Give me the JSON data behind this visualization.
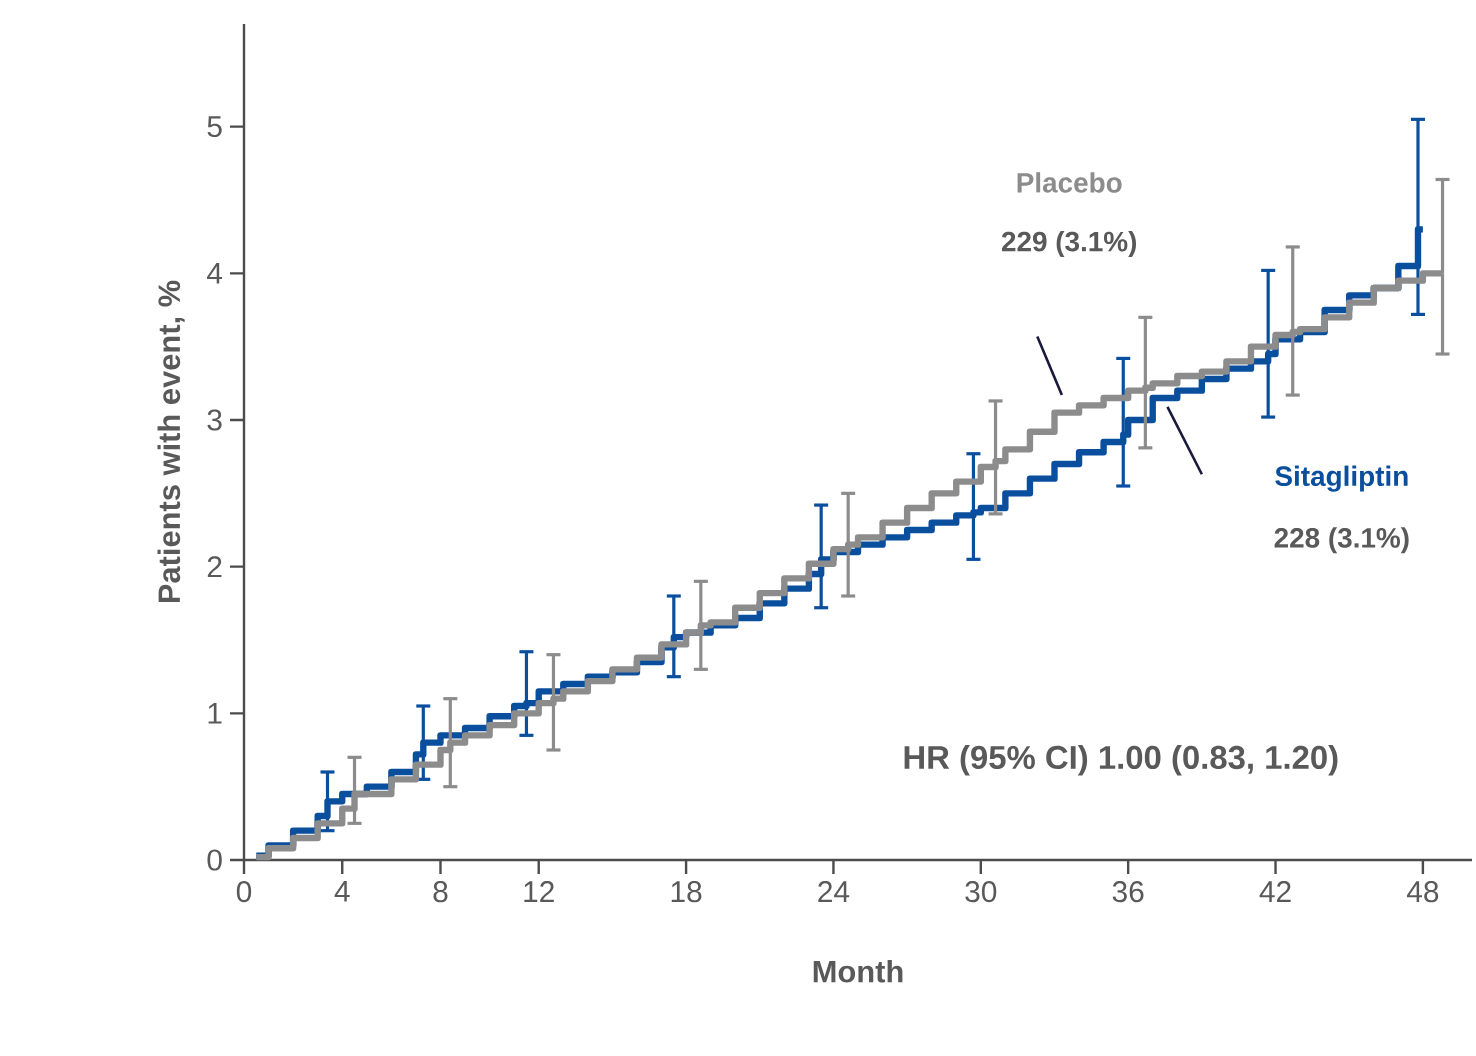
{
  "chart_data": {
    "type": "step",
    "xlabel": "Month",
    "ylabel": "Patients with event, %",
    "xlim": [
      0,
      50
    ],
    "ylim": [
      0,
      5.7
    ],
    "xticks": [
      0,
      4,
      8,
      12,
      18,
      24,
      30,
      36,
      42,
      48
    ],
    "yticks": [
      0,
      1,
      2,
      3,
      4,
      5
    ],
    "series": [
      {
        "name": "Sitagliptin",
        "color": "#0a4f9e",
        "x": [
          0.5,
          1,
          2,
          3,
          3.4,
          4,
          5,
          6,
          7,
          7.3,
          8,
          9,
          10,
          11,
          11.5,
          12,
          13,
          14,
          15,
          16,
          17,
          17.5,
          18,
          19,
          20,
          21,
          22,
          23,
          23.5,
          24,
          25,
          26,
          27,
          28,
          29,
          29.7,
          30,
          31,
          32,
          33,
          34,
          35,
          35.8,
          36,
          37,
          38,
          39,
          40,
          41,
          41.7,
          42,
          43,
          44,
          45,
          46,
          47,
          47.8,
          48
        ],
        "values": [
          0.03,
          0.1,
          0.2,
          0.3,
          0.4,
          0.45,
          0.5,
          0.6,
          0.72,
          0.8,
          0.85,
          0.9,
          0.98,
          1.05,
          1.07,
          1.15,
          1.2,
          1.25,
          1.28,
          1.35,
          1.45,
          1.52,
          1.55,
          1.6,
          1.65,
          1.75,
          1.85,
          1.95,
          2.05,
          2.1,
          2.15,
          2.2,
          2.25,
          2.3,
          2.35,
          2.37,
          2.4,
          2.5,
          2.6,
          2.7,
          2.78,
          2.85,
          2.9,
          3.0,
          3.15,
          3.2,
          3.28,
          3.35,
          3.4,
          3.45,
          3.55,
          3.6,
          3.75,
          3.85,
          3.9,
          4.05,
          4.3,
          4.3
        ],
        "errors": [
          null,
          null,
          null,
          null,
          [
            0.2,
            0.6
          ],
          null,
          null,
          null,
          null,
          [
            0.55,
            1.05
          ],
          null,
          null,
          null,
          null,
          [
            0.85,
            1.42
          ],
          null,
          null,
          null,
          null,
          null,
          null,
          [
            1.25,
            1.8
          ],
          null,
          null,
          null,
          null,
          null,
          null,
          [
            1.72,
            2.42
          ],
          null,
          null,
          null,
          null,
          null,
          null,
          [
            2.05,
            2.77
          ],
          null,
          null,
          null,
          null,
          null,
          null,
          [
            2.55,
            3.42
          ],
          null,
          null,
          null,
          null,
          null,
          null,
          [
            3.02,
            4.02
          ],
          null,
          null,
          null,
          null,
          null,
          null,
          [
            3.72,
            5.05
          ],
          null
        ]
      },
      {
        "name": "Placebo",
        "color": "#8c8c8c",
        "x": [
          0.5,
          1,
          2,
          3,
          4,
          4.5,
          5,
          6,
          7,
          8,
          8.4,
          9,
          10,
          11,
          12,
          12.6,
          13,
          14,
          15,
          16,
          17,
          18,
          18.6,
          19,
          20,
          21,
          22,
          23,
          24,
          24.6,
          25,
          26,
          27,
          28,
          29,
          30,
          30.6,
          31,
          32,
          33,
          34,
          35,
          36,
          36.7,
          37,
          38,
          39,
          40,
          41,
          42,
          42.7,
          43,
          44,
          45,
          46,
          47,
          48,
          48.8
        ],
        "values": [
          0.02,
          0.08,
          0.15,
          0.25,
          0.35,
          0.45,
          0.45,
          0.55,
          0.65,
          0.75,
          0.8,
          0.85,
          0.92,
          1.0,
          1.07,
          1.1,
          1.15,
          1.22,
          1.3,
          1.38,
          1.47,
          1.55,
          1.6,
          1.62,
          1.72,
          1.82,
          1.92,
          2.02,
          2.12,
          2.15,
          2.2,
          2.3,
          2.4,
          2.5,
          2.58,
          2.68,
          2.72,
          2.8,
          2.92,
          3.05,
          3.1,
          3.15,
          3.2,
          3.22,
          3.25,
          3.3,
          3.33,
          3.4,
          3.5,
          3.58,
          3.6,
          3.62,
          3.7,
          3.8,
          3.9,
          3.95,
          4.0,
          4.0
        ],
        "errors": [
          null,
          null,
          null,
          null,
          null,
          [
            0.25,
            0.7
          ],
          null,
          null,
          null,
          null,
          [
            0.5,
            1.1
          ],
          null,
          null,
          null,
          null,
          [
            0.75,
            1.4
          ],
          null,
          null,
          null,
          null,
          null,
          null,
          [
            1.3,
            1.9
          ],
          null,
          null,
          null,
          null,
          null,
          null,
          [
            1.8,
            2.5
          ],
          null,
          null,
          null,
          null,
          null,
          null,
          [
            2.36,
            3.13
          ],
          null,
          null,
          null,
          null,
          null,
          null,
          [
            2.81,
            3.7
          ],
          null,
          null,
          null,
          null,
          null,
          null,
          [
            3.17,
            4.18
          ],
          null,
          null,
          null,
          null,
          null,
          null,
          [
            3.45,
            4.64
          ]
        ]
      }
    ],
    "annotations": [
      "228 (3.1%)",
      "229 (3.1%)",
      "HR (95% CI) 1.00 (0.83, 1.20)"
    ]
  }
}
